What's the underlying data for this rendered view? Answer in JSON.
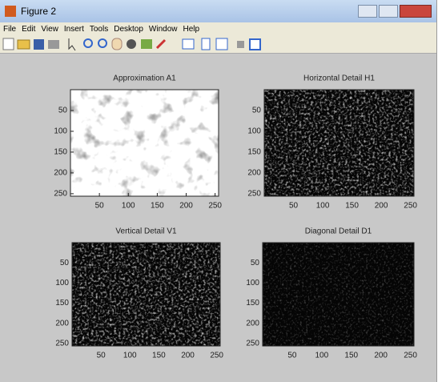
{
  "window": {
    "title": "Figure 2"
  },
  "menu": [
    "File",
    "Edit",
    "View",
    "Insert",
    "Tools",
    "Desktop",
    "Window",
    "Help"
  ],
  "subplots": [
    {
      "title": "Approximation A1",
      "style": "light",
      "xlim": [
        0,
        256
      ],
      "ylim": [
        0,
        256
      ],
      "xticks": [
        50,
        100,
        150,
        200,
        250
      ],
      "yticks": [
        50,
        100,
        150,
        200,
        250
      ]
    },
    {
      "title": "Horizontal Detail H1",
      "style": "dark",
      "xlim": [
        0,
        256
      ],
      "ylim": [
        0,
        256
      ],
      "xticks": [
        50,
        100,
        150,
        200,
        250
      ],
      "yticks": [
        50,
        100,
        150,
        200,
        250
      ]
    },
    {
      "title": "Vertical Detail V1",
      "style": "dark",
      "xlim": [
        0,
        256
      ],
      "ylim": [
        0,
        256
      ],
      "xticks": [
        50,
        100,
        150,
        200,
        250
      ],
      "yticks": [
        50,
        100,
        150,
        200,
        250
      ]
    },
    {
      "title": "Diagonal Detail D1",
      "style": "darker",
      "xlim": [
        0,
        256
      ],
      "ylim": [
        0,
        256
      ],
      "xticks": [
        50,
        100,
        150,
        200,
        250
      ],
      "yticks": [
        50,
        100,
        150,
        200,
        250
      ]
    }
  ]
}
